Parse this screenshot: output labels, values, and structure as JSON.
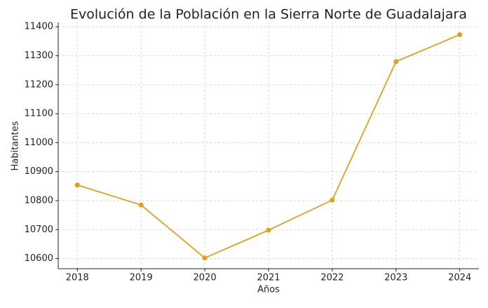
{
  "chart_data": {
    "type": "line",
    "title": "Evolución de la Población en la Sierra Norte de Guadalajara",
    "x_label": "Años",
    "y_label": "Habitantes",
    "x": [
      2018,
      2019,
      2020,
      2021,
      2022,
      2023,
      2024
    ],
    "values": [
      10854,
      10785,
      10602,
      10698,
      10802,
      11280,
      11373
    ],
    "color": "#e0a01c",
    "xlim": [
      2017.7,
      2024.3
    ],
    "xticks": [
      2018,
      2019,
      2020,
      2021,
      2022,
      2023,
      2024
    ],
    "ylim": [
      10565,
      11415
    ],
    "yticks": [
      10600,
      10700,
      10800,
      10900,
      11000,
      11100,
      11200,
      11300,
      11400
    ],
    "grid": true
  }
}
